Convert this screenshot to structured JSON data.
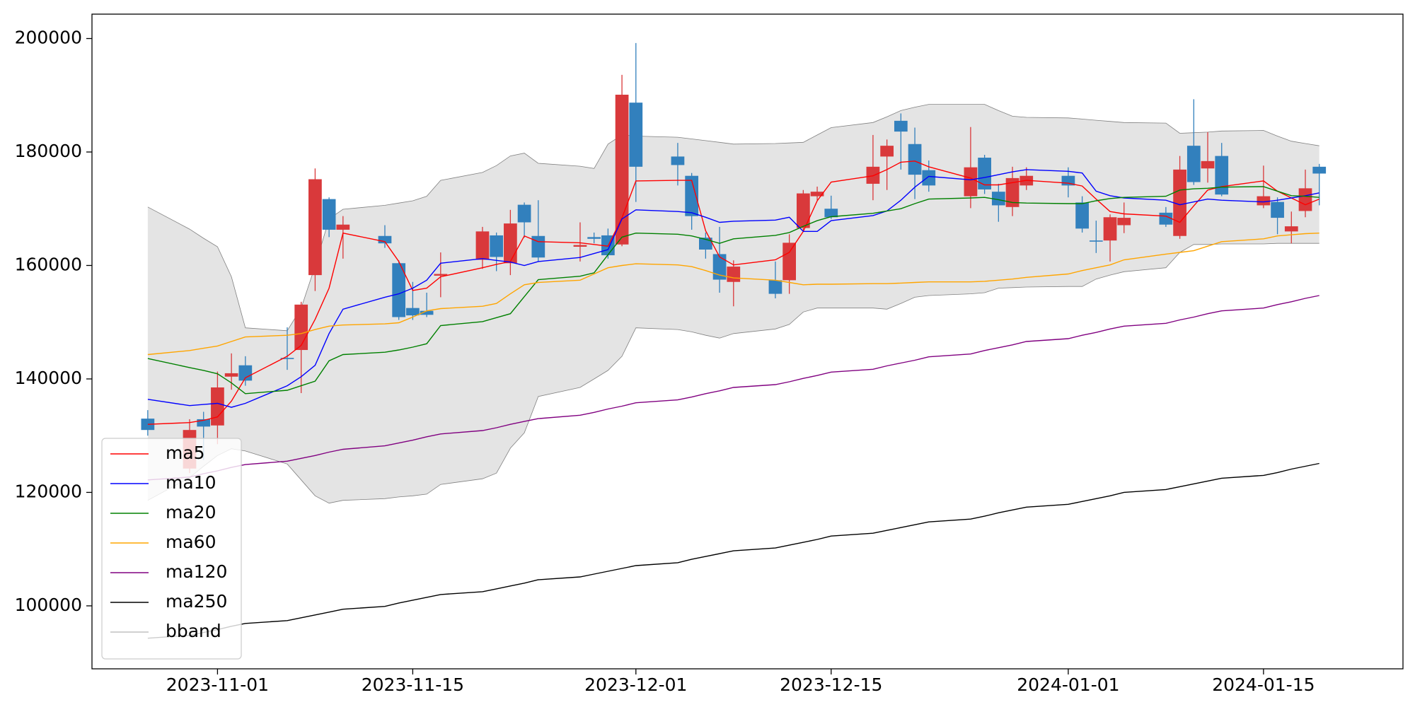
{
  "chart_data": {
    "type": "candlestick",
    "x": [
      "2023-10-27",
      "2023-10-30",
      "2023-10-31",
      "2023-11-01",
      "2023-11-02",
      "2023-11-03",
      "2023-11-06",
      "2023-11-07",
      "2023-11-08",
      "2023-11-09",
      "2023-11-10",
      "2023-11-13",
      "2023-11-14",
      "2023-11-15",
      "2023-11-16",
      "2023-11-17",
      "2023-11-20",
      "2023-11-21",
      "2023-11-22",
      "2023-11-23",
      "2023-11-24",
      "2023-11-27",
      "2023-11-28",
      "2023-11-29",
      "2023-11-30",
      "2023-12-01",
      "2023-12-04",
      "2023-12-05",
      "2023-12-06",
      "2023-12-07",
      "2023-12-08",
      "2023-12-11",
      "2023-12-12",
      "2023-12-13",
      "2023-12-14",
      "2023-12-15",
      "2023-12-18",
      "2023-12-19",
      "2023-12-20",
      "2023-12-21",
      "2023-12-22",
      "2023-12-25",
      "2023-12-26",
      "2023-12-27",
      "2023-12-28",
      "2023-12-29",
      "2024-01-01",
      "2024-01-02",
      "2024-01-03",
      "2024-01-04",
      "2024-01-05",
      "2024-01-08",
      "2024-01-09",
      "2024-01-10",
      "2024-01-11",
      "2024-01-12",
      "2024-01-15",
      "2024-01-16",
      "2024-01-17",
      "2024-01-18",
      "2024-01-19"
    ],
    "open": [
      133000,
      124200,
      132900,
      131800,
      140400,
      142400,
      143700,
      145100,
      158300,
      171700,
      166300,
      165200,
      160400,
      152500,
      152000,
      158200,
      161000,
      165300,
      160400,
      170700,
      165200,
      163300,
      165000,
      165300,
      163700,
      188700,
      179200,
      175800,
      164900,
      162000,
      157100,
      157400,
      157400,
      166600,
      172200,
      170000,
      174400,
      179200,
      185500,
      181400,
      176800,
      172200,
      179000,
      173000,
      170300,
      174100,
      175800,
      171100,
      164400,
      164400,
      167100,
      169300,
      165200,
      181100,
      177100,
      179300,
      170600,
      171200,
      166000,
      169600,
      177400
    ],
    "high": [
      134500,
      132900,
      134200,
      141300,
      144500,
      144000,
      149100,
      153600,
      177100,
      172000,
      168700,
      167100,
      160900,
      157100,
      155200,
      162300,
      166800,
      165800,
      169800,
      171100,
      171500,
      167600,
      165800,
      166500,
      193600,
      199200,
      181600,
      176300,
      165800,
      166800,
      160900,
      160700,
      165500,
      173300,
      173900,
      172300,
      183000,
      182200,
      186800,
      184300,
      178500,
      184400,
      179500,
      174400,
      177400,
      177300,
      177300,
      172200,
      167900,
      169000,
      171100,
      170300,
      179300,
      189300,
      183500,
      181600,
      177600,
      172000,
      169500,
      176900,
      177900
    ],
    "low": [
      130000,
      123400,
      125700,
      128500,
      138100,
      138800,
      141600,
      137500,
      155500,
      165000,
      161200,
      163100,
      150400,
      150400,
      150900,
      154400,
      159400,
      159000,
      158300,
      164900,
      160700,
      160700,
      163900,
      161200,
      163400,
      171200,
      174100,
      166300,
      161200,
      155200,
      152800,
      154200,
      155000,
      166100,
      171500,
      168200,
      171500,
      173300,
      176900,
      171700,
      173000,
      170100,
      172600,
      167700,
      168700,
      173300,
      172000,
      165800,
      162200,
      160700,
      165700,
      166800,
      164700,
      174200,
      174600,
      172200,
      170100,
      165500,
      163900,
      168500,
      170600
    ],
    "close": [
      131000,
      131000,
      131600,
      138500,
      141000,
      139700,
      143500,
      153100,
      175200,
      166300,
      167200,
      163900,
      150900,
      151200,
      151300,
      158500,
      166000,
      161500,
      167400,
      167600,
      161400,
      163600,
      164700,
      161800,
      190100,
      177400,
      177700,
      168700,
      162800,
      157500,
      159800,
      155000,
      164000,
      172700,
      173000,
      168500,
      177400,
      181100,
      183600,
      176000,
      174100,
      177300,
      173400,
      170600,
      175400,
      175800,
      174100,
      166500,
      164200,
      168500,
      168400,
      167200,
      176900,
      174700,
      178400,
      172500,
      172200,
      168400,
      166900,
      173600,
      176200
    ],
    "up_color": "#d9393b",
    "down_color": "#3280bd",
    "series": [
      {
        "name": "ma5",
        "color": "#ff0000",
        "values": [
          132000,
          132300,
          132700,
          133300,
          136100,
          140200,
          144000,
          145900,
          150500,
          156000,
          165700,
          164200,
          160700,
          155600,
          156000,
          158000,
          159600,
          160200,
          160700,
          165200,
          164200,
          164000,
          163700,
          163400,
          168400,
          174900,
          175000,
          175000,
          166100,
          161500,
          160100,
          161000,
          162300,
          166000,
          171400,
          174700,
          175800,
          176900,
          178200,
          178400,
          177400,
          175400,
          174200,
          174200,
          174600,
          175000,
          174500,
          174000,
          171700,
          169500,
          169100,
          168700,
          167600,
          170500,
          173300,
          173900,
          174900,
          173100,
          171900,
          170700,
          171700
        ]
      },
      {
        "name": "ma10",
        "color": "#0000ff",
        "values": [
          136400,
          135300,
          135500,
          135700,
          135000,
          135700,
          138800,
          140400,
          142400,
          148000,
          152300,
          154400,
          155000,
          156000,
          157400,
          160400,
          161200,
          160900,
          160600,
          160000,
          160700,
          161400,
          162100,
          162800,
          168200,
          169800,
          169500,
          169300,
          168500,
          167600,
          167800,
          168000,
          168500,
          166000,
          166000,
          167900,
          168800,
          169600,
          171500,
          173800,
          175700,
          175100,
          175500,
          176000,
          176500,
          176900,
          176600,
          176300,
          173100,
          172300,
          171900,
          171500,
          170700,
          171200,
          171700,
          171500,
          171200,
          171500,
          171900,
          172300,
          172800
        ]
      },
      {
        "name": "ma20",
        "color": "#008000",
        "values": [
          143600,
          142000,
          141500,
          140900,
          139300,
          137400,
          138000,
          138800,
          139600,
          143200,
          144300,
          144700,
          145100,
          145600,
          146200,
          149400,
          150100,
          150800,
          151500,
          154500,
          157500,
          158100,
          158700,
          161900,
          165000,
          165700,
          165500,
          165200,
          164600,
          163900,
          164700,
          165300,
          165800,
          166900,
          167900,
          168600,
          169200,
          169600,
          170000,
          170900,
          171700,
          171900,
          172000,
          171600,
          171100,
          171000,
          170900,
          170900,
          171400,
          171800,
          172000,
          172200,
          173300,
          173500,
          173600,
          173800,
          173900,
          173100,
          172300,
          172200,
          172000
        ]
      },
      {
        "name": "ma60",
        "color": "#ffa500",
        "values": [
          144300,
          145000,
          145400,
          145800,
          146600,
          147400,
          147700,
          148000,
          148700,
          149300,
          149500,
          149700,
          149900,
          150900,
          152000,
          152400,
          152800,
          153300,
          155000,
          156600,
          157000,
          157400,
          158500,
          159600,
          160000,
          160300,
          160100,
          159800,
          159100,
          158300,
          157800,
          157400,
          157000,
          156600,
          156700,
          156700,
          156800,
          156800,
          156900,
          157000,
          157100,
          157100,
          157200,
          157400,
          157600,
          157900,
          158500,
          159100,
          159600,
          160100,
          161000,
          162000,
          162300,
          162600,
          163400,
          164200,
          164700,
          165200,
          165400,
          165600,
          165700
        ]
      },
      {
        "name": "ma120",
        "color": "#800080",
        "values": [
          122200,
          122700,
          123300,
          123800,
          124400,
          124900,
          125500,
          126000,
          126500,
          127100,
          127600,
          128200,
          128700,
          129200,
          129800,
          130300,
          130900,
          131400,
          132000,
          132500,
          133000,
          133600,
          134100,
          134700,
          135200,
          135800,
          136300,
          136800,
          137400,
          137900,
          138500,
          139000,
          139500,
          140100,
          140600,
          141200,
          141700,
          142300,
          142800,
          143300,
          143900,
          144400,
          145000,
          145500,
          146000,
          146600,
          147100,
          147700,
          148200,
          148800,
          149300,
          149800,
          150400,
          150900,
          151500,
          152000,
          152500,
          153100,
          153600,
          154200,
          154700
        ]
      },
      {
        "name": "ma250",
        "color": "#000000",
        "values": [
          94300,
          94800,
          95300,
          95800,
          96400,
          96900,
          97400,
          97900,
          98400,
          98900,
          99400,
          99900,
          100500,
          101000,
          101500,
          102000,
          102500,
          103000,
          103500,
          104000,
          104600,
          105100,
          105600,
          106100,
          106600,
          107100,
          107600,
          108200,
          108700,
          109200,
          109700,
          110200,
          110700,
          111200,
          111700,
          112300,
          112800,
          113300,
          113800,
          114300,
          114800,
          115300,
          115800,
          116400,
          116900,
          117400,
          117900,
          118400,
          118900,
          119400,
          120000,
          120500,
          121000,
          121500,
          122000,
          122500,
          123000,
          123500,
          124100,
          124600,
          125100
        ]
      }
    ],
    "bband": {
      "name": "bband",
      "color": "#808080",
      "fill": "#e4e4e4",
      "upper": [
        170300,
        166400,
        164800,
        163300,
        158000,
        149000,
        148500,
        152500,
        159900,
        168200,
        169900,
        170600,
        171000,
        171400,
        172200,
        175000,
        176400,
        177600,
        179300,
        179800,
        178000,
        177500,
        177100,
        181400,
        183000,
        182800,
        182600,
        182300,
        182000,
        181700,
        181400,
        181500,
        181600,
        181700,
        183000,
        184300,
        185200,
        186200,
        187300,
        187900,
        188400,
        188400,
        188400,
        187300,
        186300,
        186100,
        186000,
        185800,
        185600,
        185400,
        185200,
        185100,
        183300,
        183400,
        183500,
        183700,
        183800,
        182800,
        181900,
        181500,
        181100
      ],
      "lower": [
        118600,
        122600,
        124600,
        126500,
        127700,
        127300,
        125000,
        122200,
        119400,
        118100,
        118600,
        118900,
        119200,
        119400,
        119700,
        121400,
        122400,
        123400,
        127800,
        130500,
        136900,
        138500,
        140000,
        141500,
        144000,
        149000,
        148700,
        148300,
        147700,
        147200,
        148000,
        148800,
        149600,
        151800,
        152500,
        152500,
        152500,
        152300,
        153300,
        154400,
        154700,
        155000,
        155200,
        156000,
        156100,
        156200,
        156300,
        156300,
        157600,
        158300,
        158900,
        159600,
        162300,
        163700,
        163700,
        163800,
        163800,
        163900,
        163900,
        163900,
        163900
      ]
    },
    "xlim": [
      "2023-10-23",
      "2024-01-25"
    ],
    "xticks": [
      "2023-11-01",
      "2023-11-15",
      "2023-12-01",
      "2023-12-15",
      "2024-01-01",
      "2024-01-15"
    ],
    "ylim": [
      88900,
      204300
    ],
    "yticks": [
      100000,
      120000,
      140000,
      160000,
      180000,
      200000
    ],
    "legend": "lower left"
  }
}
